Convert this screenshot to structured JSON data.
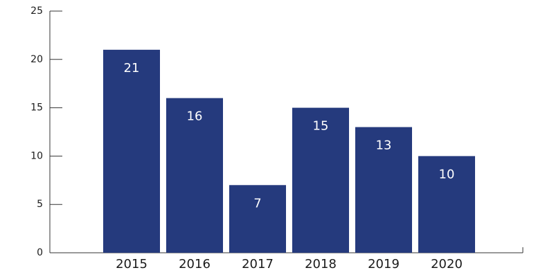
{
  "chart_data": {
    "type": "bar",
    "categories": [
      "2015",
      "2016",
      "2017",
      "2018",
      "2019",
      "2020"
    ],
    "values": [
      21,
      16,
      7,
      15,
      13,
      10
    ],
    "color": "#253a7d",
    "ylim": [
      0,
      25
    ],
    "yticks": [
      0,
      5,
      10,
      15,
      20,
      25
    ]
  }
}
